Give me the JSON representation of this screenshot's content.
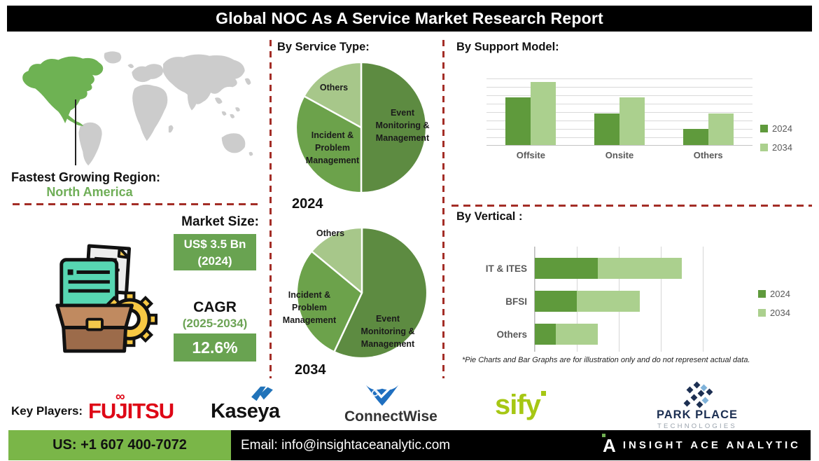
{
  "title": "Global NOC As A Service Market Research Report",
  "region": {
    "label": "Fastest Growing Region:",
    "value": "North America"
  },
  "market": {
    "size_label": "Market Size:",
    "size_value": "US$ 3.5 Bn",
    "size_year": "(2024)",
    "cagr_label": "CAGR",
    "cagr_period": "(2025-2034)",
    "cagr_value": "12.6%"
  },
  "sections": {
    "service_type": "By Service Type:",
    "support_model": "By Support Model:",
    "vertical": "By Vertical :"
  },
  "footnote": "*Pie Charts and Bar Graphs are for illustration only and do not represent actual data.",
  "key_players": {
    "label": "Key Players:",
    "fujitsu": "FUJITSU",
    "kaseya": "Kaseya",
    "connectwise": "ConnectWise",
    "sify": "sify",
    "parkplace_line1": "PARK PLACE",
    "parkplace_line2": "TECHNOLOGIES"
  },
  "footer": {
    "phone": "US: +1 607 400-7072",
    "email": "Email: info@insightaceanalytic.com",
    "logo_letter": "A",
    "brand": "INSIGHT ACE ANALYTIC"
  },
  "colors": {
    "pie_dark_green": "#5d8b41",
    "pie_mid_green": "#6ca24b",
    "pie_light_green": "#a7c78a",
    "bar_2024": "#5f9a3c",
    "bar_2034": "#abd08e",
    "box_green": "#69a351",
    "map_green": "#6eb253",
    "map_gray": "#cccccc",
    "dash_red": "#a32d26",
    "footer_green": "#7ab648",
    "fujitsu_red": "#de0716",
    "kaseya_blue": "#2173b9",
    "connectwise_blue": "#1f6fc0",
    "sify_green": "#a6c714",
    "parkplace_navy": "#1c2f52"
  },
  "chart_data": [
    {
      "id": "pie-2024",
      "type": "pie",
      "title": "2024",
      "labels": [
        "Event Monitoring & Management",
        "Incident & Problem Management",
        "Others"
      ],
      "values": [
        50,
        33,
        17
      ],
      "colors": [
        "#5d8b41",
        "#6ca24b",
        "#a7c78a"
      ],
      "legend_position": "labels-inside",
      "note": "illustration only"
    },
    {
      "id": "pie-2034",
      "type": "pie",
      "title": "2034",
      "labels": [
        "Event Monitoring & Management",
        "Incident & Problem Management",
        "Others"
      ],
      "values": [
        57,
        29,
        14
      ],
      "colors": [
        "#5d8b41",
        "#6ca24b",
        "#a7c78a"
      ],
      "legend_position": "labels-inside",
      "note": "illustration only"
    },
    {
      "id": "support-model",
      "type": "bar",
      "title": "By Support Model:",
      "categories": [
        "Offsite",
        "Onsite",
        "Others"
      ],
      "series": [
        {
          "name": "2024",
          "values": [
            3,
            2,
            1
          ],
          "color": "#5f9a3c"
        },
        {
          "name": "2034",
          "values": [
            4,
            3,
            2
          ],
          "color": "#abd08e"
        }
      ],
      "ylim": [
        0,
        4.2
      ],
      "grid": true,
      "legend_position": "right",
      "note": "illustration only, no axis value labels shown"
    },
    {
      "id": "vertical",
      "type": "bar",
      "orientation": "horizontal-stacked",
      "title": "By Vertical :",
      "categories": [
        "IT & ITES",
        "BFSI",
        "Others"
      ],
      "series": [
        {
          "name": "2024",
          "values": [
            1.5,
            1,
            0.5
          ],
          "color": "#5f9a3c"
        },
        {
          "name": "2034",
          "values": [
            2,
            1.5,
            1
          ],
          "color": "#abd08e"
        }
      ],
      "xlim": [
        0,
        4
      ],
      "grid": true,
      "legend_position": "right",
      "note": "illustration only, no axis value labels shown"
    }
  ]
}
